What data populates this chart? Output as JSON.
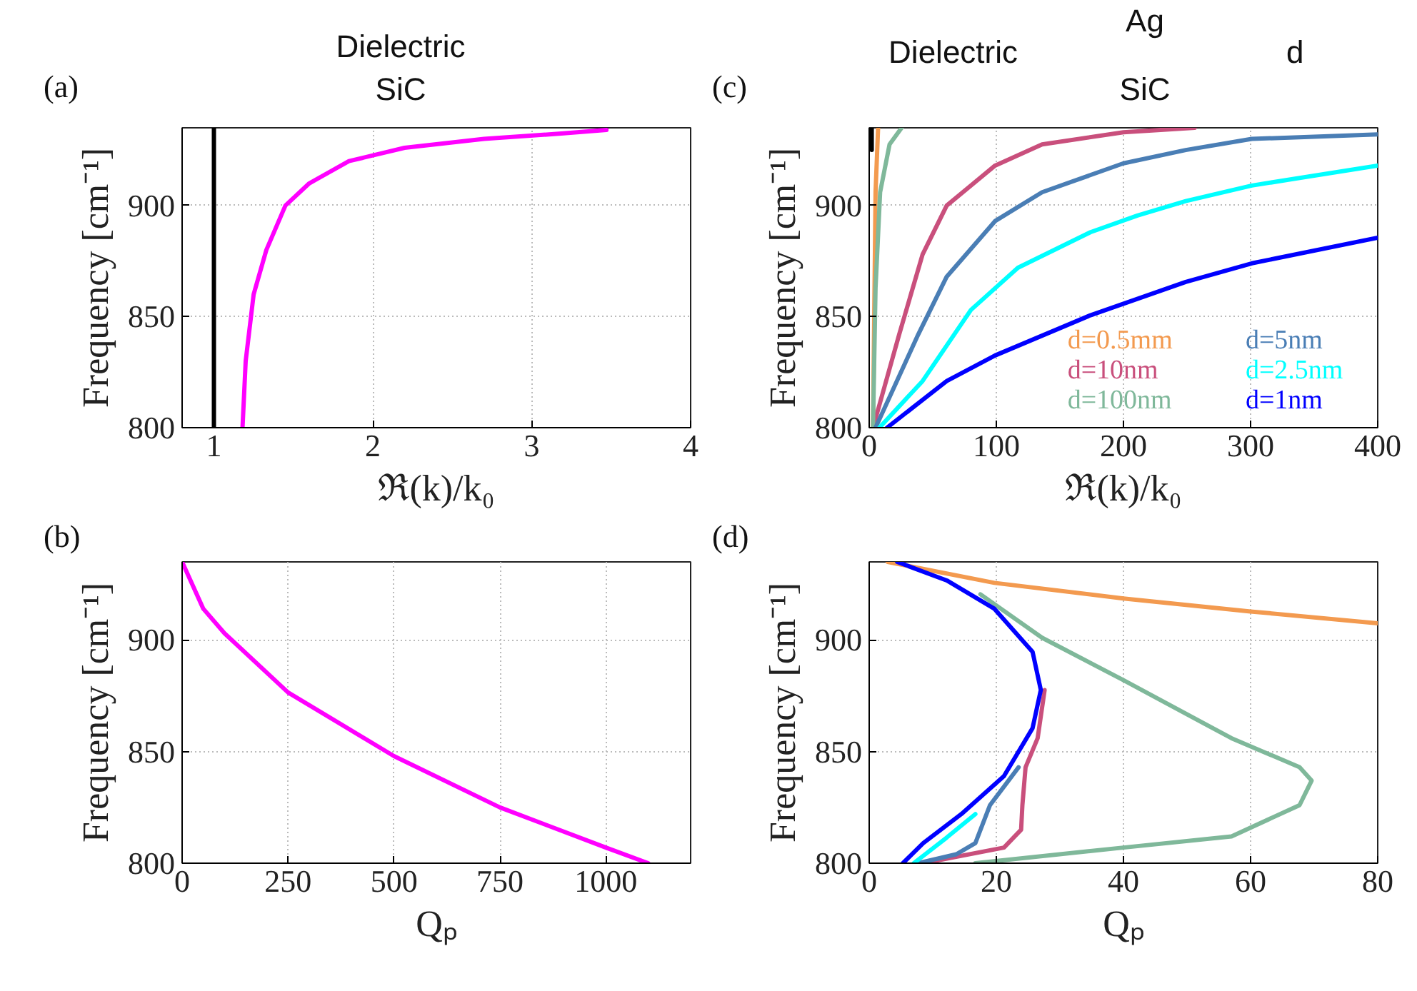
{
  "chart_data": [
    {
      "type": "line",
      "xlabel": "ℜ(k)/k₀",
      "ylabel": "Frequency [cm⁻¹]",
      "xlim": [
        0.8,
        4
      ],
      "ylim": [
        800,
        935
      ],
      "xticks": [
        1,
        2,
        3,
        4
      ],
      "yticks": [
        800,
        850,
        900
      ],
      "grid": true,
      "annotations": [
        "(a)",
        "Dielectric",
        "SiC"
      ],
      "series": [
        {
          "color": "#000000",
          "x": [
            1,
            1
          ],
          "values": [
            800,
            935
          ]
        },
        {
          "color": "#ff00ff",
          "x": [
            1.18,
            1.2,
            1.25,
            1.33,
            1.45,
            1.6,
            1.85,
            2.2,
            2.7,
            3.2,
            3.47
          ],
          "values": [
            800,
            830,
            860,
            880,
            900,
            910,
            920,
            926,
            930,
            932.5,
            934
          ]
        }
      ]
    },
    {
      "type": "line",
      "xlabel": "ℜ(k)/k₀",
      "ylabel": "Frequency [cm⁻¹]",
      "xlim": [
        0,
        400
      ],
      "ylim": [
        800,
        935
      ],
      "xticks": [
        0,
        100,
        200,
        300,
        400
      ],
      "yticks": [
        800,
        850,
        900
      ],
      "grid": true,
      "legend": "bottom right",
      "annotations": [
        "(c)",
        "Dielectric",
        "Ag",
        "SiC",
        "d"
      ],
      "series": [
        {
          "name": "d=0.5mm",
          "color": "#f39a4f",
          "x": [
            3,
            5,
            7
          ],
          "values": [
            800,
            906,
            935
          ]
        },
        {
          "name": "d=10nm",
          "color": "#c94f7c",
          "x": [
            3,
            23.6,
            42,
            61,
            99,
            136,
            200,
            256
          ],
          "values": [
            800,
            842,
            878,
            900,
            918,
            927.5,
            933,
            935
          ]
        },
        {
          "name": "d=100nm",
          "color": "#7fb89a",
          "x": [
            3,
            5,
            8.6,
            16,
            25.5
          ],
          "values": [
            800,
            863,
            906,
            927.5,
            935
          ]
        },
        {
          "name": "d=5nm",
          "color": "#4a7eb5",
          "x": [
            5,
            38.6,
            61,
            99,
            136,
            200,
            249,
            301,
            400
          ],
          "values": [
            800,
            842,
            868,
            893,
            906,
            919,
            925,
            930,
            932
          ]
        },
        {
          "name": "d=2.5nm",
          "color": "#00ffff",
          "x": [
            8,
            42,
            80,
            117,
            174,
            211,
            249,
            301,
            400
          ],
          "values": [
            800,
            821,
            853,
            872,
            888,
            895.5,
            902,
            909,
            918
          ]
        },
        {
          "name": "d=1nm",
          "color": "#0000ff",
          "x": [
            14,
            61,
            99,
            174,
            249,
            301,
            400
          ],
          "values": [
            800,
            821,
            832.5,
            850.6,
            865.6,
            874,
            885.5
          ]
        },
        {
          "color": "#000000",
          "x": [
            2,
            2
          ],
          "values": [
            925,
            935
          ]
        }
      ]
    },
    {
      "type": "line",
      "xlabel": "Qₚ",
      "ylabel": "Frequency [cm⁻¹]",
      "xlim": [
        0,
        1200
      ],
      "ylim": [
        800,
        935
      ],
      "xticks": [
        0,
        250,
        500,
        750,
        1000
      ],
      "yticks": [
        800,
        850,
        900
      ],
      "grid": true,
      "annotations": [
        "(b)"
      ],
      "series": [
        {
          "color": "#ff00ff",
          "x": [
            0,
            50,
            100,
            250,
            500,
            750,
            1000,
            1100
          ],
          "values": [
            935,
            914,
            903,
            876.5,
            848,
            825,
            807,
            800
          ]
        }
      ]
    },
    {
      "type": "line",
      "xlabel": "Qₚ",
      "ylabel": "Frequency [cm⁻¹]",
      "xlim": [
        0,
        80
      ],
      "ylim": [
        800,
        935
      ],
      "xticks": [
        0,
        20,
        40,
        60,
        80
      ],
      "yticks": [
        800,
        850,
        900
      ],
      "grid": true,
      "annotations": [
        "(d)"
      ],
      "series": [
        {
          "color": "#f39a4f",
          "x": [
            2.9,
            19.7,
            40,
            60,
            80
          ],
          "values": [
            935,
            925.6,
            918.6,
            912.8,
            907.5
          ]
        },
        {
          "color": "#7fb89a",
          "x": [
            17.5,
            27.2,
            40,
            57,
            67.7,
            69.6,
            67.7,
            57,
            40,
            16.7
          ],
          "values": [
            920.5,
            901,
            882,
            856,
            843,
            837,
            826,
            812,
            807,
            800
          ]
        },
        {
          "color": "#c94f7c",
          "x": [
            27.6,
            26.5,
            24.6,
            24.1,
            23.9,
            21.2,
            8.5
          ],
          "values": [
            877.6,
            856,
            843,
            826,
            815,
            807,
            800
          ]
        },
        {
          "color": "#4a7eb5",
          "x": [
            23.5,
            19,
            16.7,
            13.7,
            7.7
          ],
          "values": [
            843,
            826,
            809,
            804,
            800
          ]
        },
        {
          "color": "#00ffff",
          "x": [
            16.7,
            12.2,
            7
          ],
          "values": [
            822,
            811.5,
            800
          ]
        },
        {
          "color": "#0000ff",
          "x": [
            4.4,
            12.2,
            19.7,
            25.7,
            27,
            25.7,
            21.2,
            14.5,
            8.5,
            5.3
          ],
          "values": [
            935,
            926.7,
            914,
            894.7,
            877.6,
            860.5,
            839,
            822,
            809,
            800
          ]
        }
      ]
    }
  ]
}
